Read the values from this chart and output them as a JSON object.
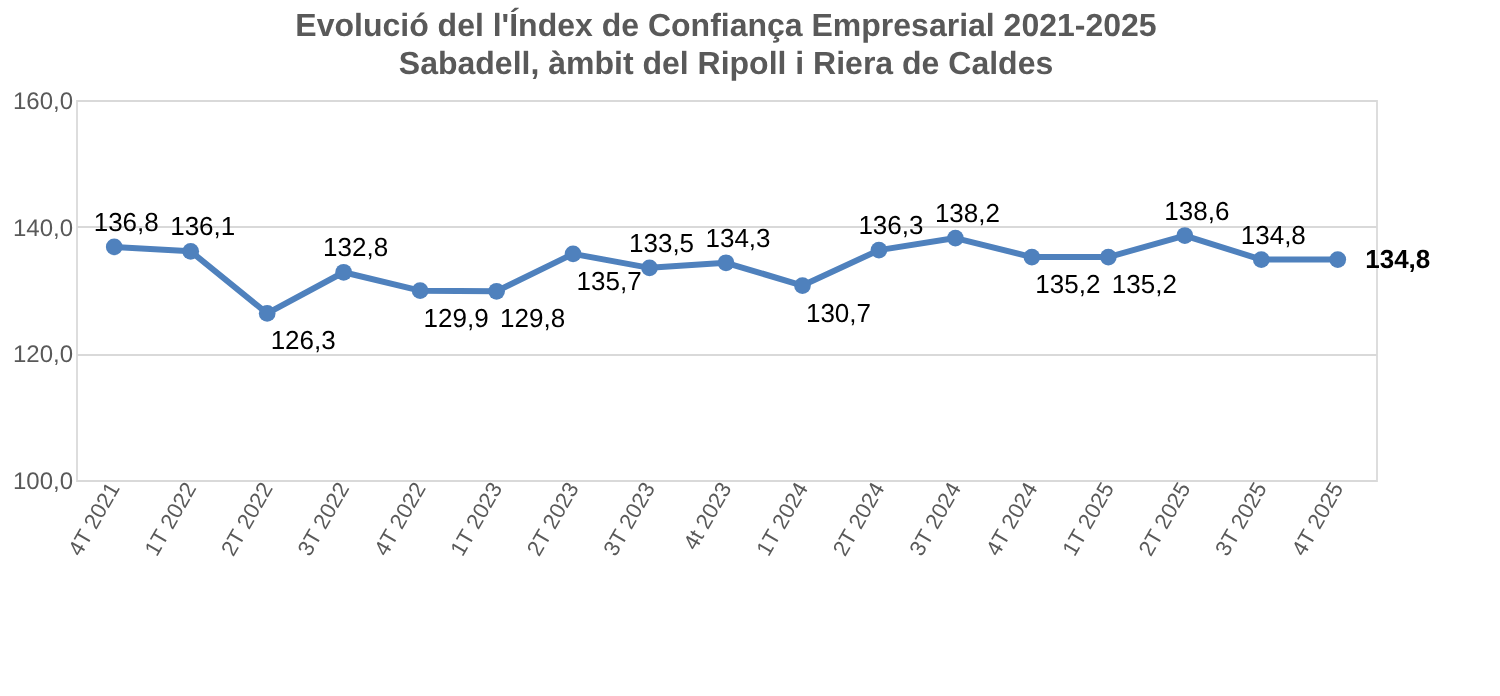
{
  "chart_data": {
    "type": "line",
    "title": "Evolució  del l'Índex de Confiança Empresarial 2021-2025",
    "subtitle": "Sabadell, àmbit del Ripoll i Riera de Caldes",
    "categories": [
      "4T 2021",
      "1T 2022",
      "2T 2022",
      "3T 2022",
      "4T 2022",
      "1T 2023",
      "2T 2023",
      "3T 2023",
      "4t 2023",
      "1T 2024",
      "2T 2024",
      "3T 2024",
      "4T 2024",
      "1T 2025",
      "2T 2025",
      "3T 2025",
      "4T 2025"
    ],
    "series": [
      {
        "color": "#4f81bd",
        "values": [
          136.8,
          136.1,
          126.3,
          132.8,
          129.9,
          129.8,
          135.7,
          133.5,
          134.3,
          130.7,
          136.3,
          138.2,
          135.2,
          135.2,
          138.6,
          134.8,
          134.8
        ],
        "value_labels": [
          "136,8",
          "136,1",
          "126,3",
          "132,8",
          "129,9",
          "129,8",
          "135,7",
          "133,5",
          "134,3",
          "130,7",
          "136,3",
          "138,2",
          "135,2",
          "135,2",
          "138,6",
          "134,8",
          "134,8"
        ]
      }
    ],
    "ylim": [
      100,
      160
    ],
    "yticks": [
      {
        "value": 100,
        "label": "100,0"
      },
      {
        "value": 120,
        "label": "120,0"
      },
      {
        "value": 140,
        "label": "140,0"
      },
      {
        "value": 160,
        "label": "160,0"
      }
    ],
    "grid": "y",
    "marker": "circle",
    "line_style": "solid"
  }
}
